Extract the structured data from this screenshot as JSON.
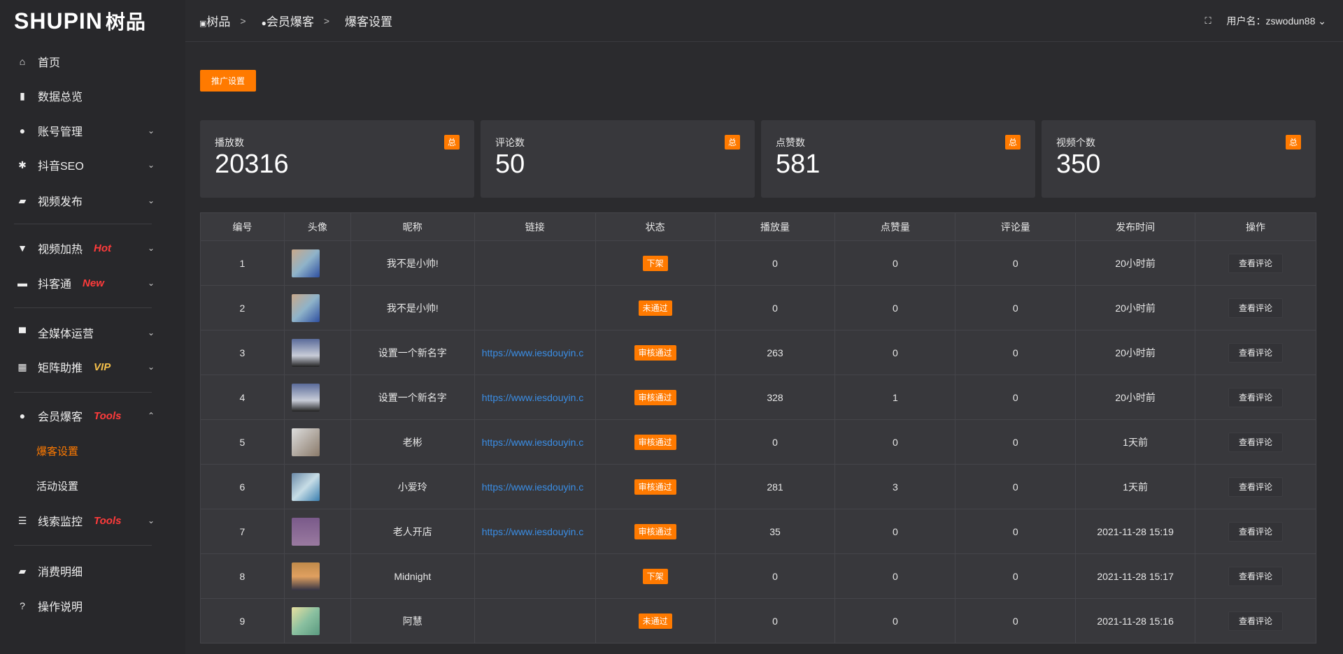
{
  "logo": {
    "text": "SHUPIN",
    "cn": "树品"
  },
  "sidebar": {
    "items": [
      {
        "label": "首页",
        "icon": "home-icon",
        "glyph": "⌂"
      },
      {
        "label": "数据总览",
        "icon": "bar-chart-icon",
        "glyph": "▮"
      },
      {
        "label": "账号管理",
        "icon": "user-icon",
        "glyph": "●",
        "chev": "⌄"
      },
      {
        "label": "抖音SEO",
        "icon": "gear-icon",
        "glyph": "✱",
        "chev": "⌄"
      },
      {
        "label": "视频发布",
        "icon": "camera-icon",
        "glyph": "▰",
        "chev": "⌄"
      },
      {
        "label": "视频加热",
        "icon": "billboard-icon",
        "glyph": "▼",
        "tag": "Hot",
        "chev": "⌄"
      },
      {
        "label": "抖客通",
        "icon": "chat-icon",
        "glyph": "▬",
        "tag": "New",
        "chev": "⌄"
      },
      {
        "label": "全媒体运营",
        "icon": "monitor-icon",
        "glyph": "▀",
        "chev": "⌄"
      },
      {
        "label": "矩阵助推",
        "icon": "grid-icon",
        "glyph": "▦",
        "tag": "VIP",
        "chev": "⌄"
      },
      {
        "label": "会员爆客",
        "icon": "user-icon",
        "glyph": "●",
        "tag": "Tools",
        "chev": "⌃"
      },
      {
        "label": "爆客设置"
      },
      {
        "label": "活动设置"
      },
      {
        "label": "线索监控",
        "icon": "sliders-icon",
        "glyph": "☰",
        "tag": "Tools",
        "chev": "⌄"
      },
      {
        "label": "消费明细",
        "icon": "wallet-icon",
        "glyph": "▰"
      },
      {
        "label": "操作说明",
        "icon": "help-icon",
        "glyph": "?"
      }
    ]
  },
  "breadcrumb": [
    "树品",
    "会员爆客",
    "爆客设置"
  ],
  "user": {
    "label": "用户名：zswodun88"
  },
  "promo_button": "推广设置",
  "stats": [
    {
      "label": "播放数",
      "value": "20316",
      "badge": "总"
    },
    {
      "label": "评论数",
      "value": "50",
      "badge": "总"
    },
    {
      "label": "点赞数",
      "value": "581",
      "badge": "总"
    },
    {
      "label": "视频个数",
      "value": "350",
      "badge": "总"
    }
  ],
  "table": {
    "headers": [
      "编号",
      "头像",
      "昵称",
      "链接",
      "状态",
      "播放量",
      "点赞量",
      "评论量",
      "发布时间",
      "操作"
    ],
    "rows": [
      {
        "id": "1",
        "name": "我不是小帅!",
        "link": "",
        "status": "下架",
        "plays": "0",
        "likes": "0",
        "comments": "0",
        "time": "20小时前",
        "op": "查看评论"
      },
      {
        "id": "2",
        "name": "我不是小帅!",
        "link": "",
        "status": "未通过",
        "plays": "0",
        "likes": "0",
        "comments": "0",
        "time": "20小时前",
        "op": "查看评论"
      },
      {
        "id": "3",
        "name": "设置一个新名字",
        "link": "https://www.iesdouyin.c",
        "status": "审核通过",
        "plays": "263",
        "likes": "0",
        "comments": "0",
        "time": "20小时前",
        "op": "查看评论"
      },
      {
        "id": "4",
        "name": "设置一个新名字",
        "link": "https://www.iesdouyin.c",
        "status": "审核通过",
        "plays": "328",
        "likes": "1",
        "comments": "0",
        "time": "20小时前",
        "op": "查看评论"
      },
      {
        "id": "5",
        "name": "老彬",
        "link": "https://www.iesdouyin.c",
        "status": "审核通过",
        "plays": "0",
        "likes": "0",
        "comments": "0",
        "time": "1天前",
        "op": "查看评论"
      },
      {
        "id": "6",
        "name": "小爱玲",
        "link": "https://www.iesdouyin.c",
        "status": "审核通过",
        "plays": "281",
        "likes": "3",
        "comments": "0",
        "time": "1天前",
        "op": "查看评论"
      },
      {
        "id": "7",
        "name": "老人开店",
        "link": "https://www.iesdouyin.c",
        "status": "审核通过",
        "plays": "35",
        "likes": "0",
        "comments": "0",
        "time": "2021-11-28 15:19",
        "op": "查看评论"
      },
      {
        "id": "8",
        "name": "Midnight",
        "link": "",
        "status": "下架",
        "plays": "0",
        "likes": "0",
        "comments": "0",
        "time": "2021-11-28 15:17",
        "op": "查看评论"
      },
      {
        "id": "9",
        "name": "阿慧",
        "link": "",
        "status": "未通过",
        "plays": "0",
        "likes": "0",
        "comments": "0",
        "time": "2021-11-28 15:16",
        "op": "查看评论"
      }
    ]
  },
  "colors": {
    "accent": "#ff7a00",
    "link": "#3a8ee6",
    "hot": "#ff3b3b",
    "vip": "#f5c04a"
  }
}
